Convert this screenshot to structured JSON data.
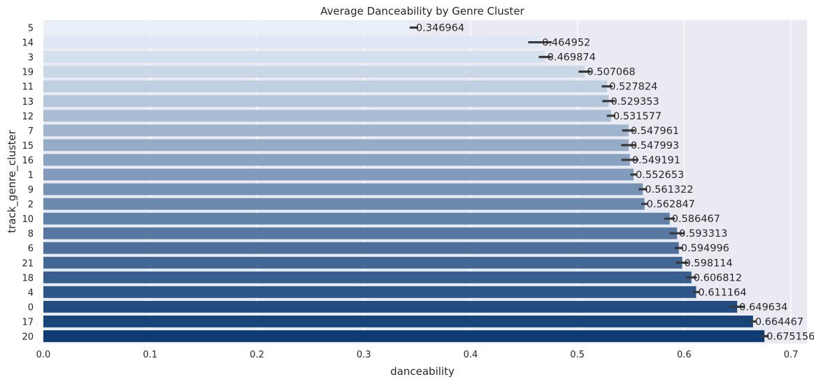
{
  "chart_data": {
    "type": "bar",
    "orientation": "horizontal",
    "title": "Average Danceability by Genre Cluster",
    "xlabel": "danceability",
    "ylabel": "track_genre_cluster",
    "xlim": [
      0,
      0.715
    ],
    "xticks": [
      "0.0",
      "0.1",
      "0.2",
      "0.3",
      "0.4",
      "0.5",
      "0.6",
      "0.7"
    ],
    "grid": true,
    "legend": "none",
    "categories": [
      "5",
      "14",
      "3",
      "19",
      "11",
      "13",
      "12",
      "7",
      "15",
      "16",
      "1",
      "9",
      "2",
      "10",
      "8",
      "6",
      "21",
      "18",
      "4",
      "0",
      "17",
      "20"
    ],
    "values": [
      0.346964,
      0.464952,
      0.469874,
      0.507068,
      0.527824,
      0.529353,
      0.531577,
      0.547961,
      0.547993,
      0.549191,
      0.552653,
      0.561322,
      0.562847,
      0.586467,
      0.593313,
      0.594996,
      0.598114,
      0.606812,
      0.611164,
      0.649634,
      0.664467,
      0.675156
    ],
    "labels": [
      "0.346964",
      "0.464952",
      "0.469874",
      "0.507068",
      "0.527824",
      "0.529353",
      "0.531577",
      "0.547961",
      "0.547993",
      "0.549191",
      "0.552653",
      "0.561322",
      "0.562847",
      "0.586467",
      "0.593313",
      "0.594996",
      "0.598114",
      "0.606812",
      "0.611164",
      "0.649634",
      "0.664467",
      "0.675156"
    ],
    "error_half_widths": [
      0.004,
      0.011,
      0.006,
      0.006,
      0.005,
      0.006,
      0.004,
      0.006,
      0.007,
      0.008,
      0.003,
      0.004,
      0.003,
      0.005,
      0.007,
      0.004,
      0.006,
      0.005,
      0.003,
      0.007,
      0.003,
      0.004
    ],
    "colors": {
      "plot_background": "#eaeaf2",
      "grid": "#ffffff",
      "error_bar": "#3a3a3a",
      "palette_start": "#e8f1fa",
      "palette_end": "#0d3c75"
    }
  }
}
